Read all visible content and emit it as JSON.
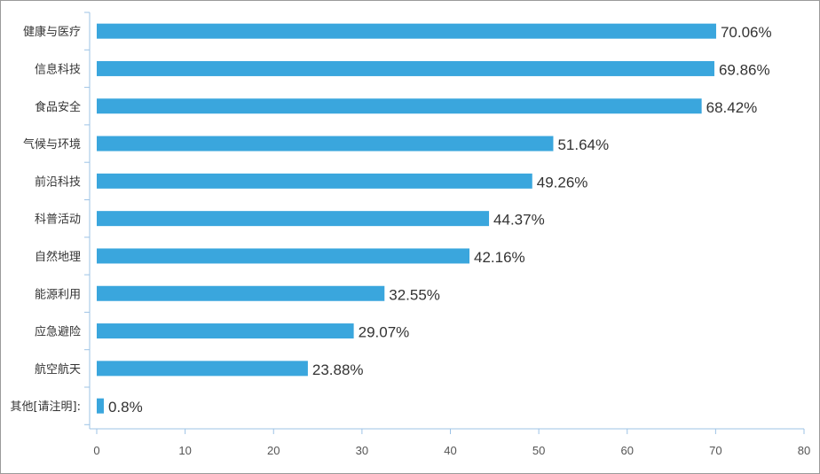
{
  "chart_data": {
    "type": "bar",
    "orientation": "horizontal",
    "categories": [
      "健康与医疗",
      "信息科技",
      "食品安全",
      "气候与环境",
      "前沿科技",
      "科普活动",
      "自然地理",
      "能源利用",
      "应急避险",
      "航空航天",
      "其他[请注明]:"
    ],
    "values": [
      70.06,
      69.86,
      68.42,
      51.64,
      49.26,
      44.37,
      42.16,
      32.55,
      29.07,
      23.88,
      0.8
    ],
    "data_labels": [
      "70.06%",
      "69.86%",
      "68.42%",
      "51.64%",
      "49.26%",
      "44.37%",
      "42.16%",
      "32.55%",
      "29.07%",
      "23.88%",
      "0.8%"
    ],
    "x_ticks": [
      "0",
      "10",
      "20",
      "30",
      "40",
      "50",
      "60",
      "70",
      "80"
    ],
    "xlim": [
      0,
      80
    ],
    "title": "",
    "xlabel": "",
    "ylabel": "",
    "grid": false,
    "colors": {
      "bar": "#3aa6dd",
      "axis": "#9dc3e6"
    }
  }
}
